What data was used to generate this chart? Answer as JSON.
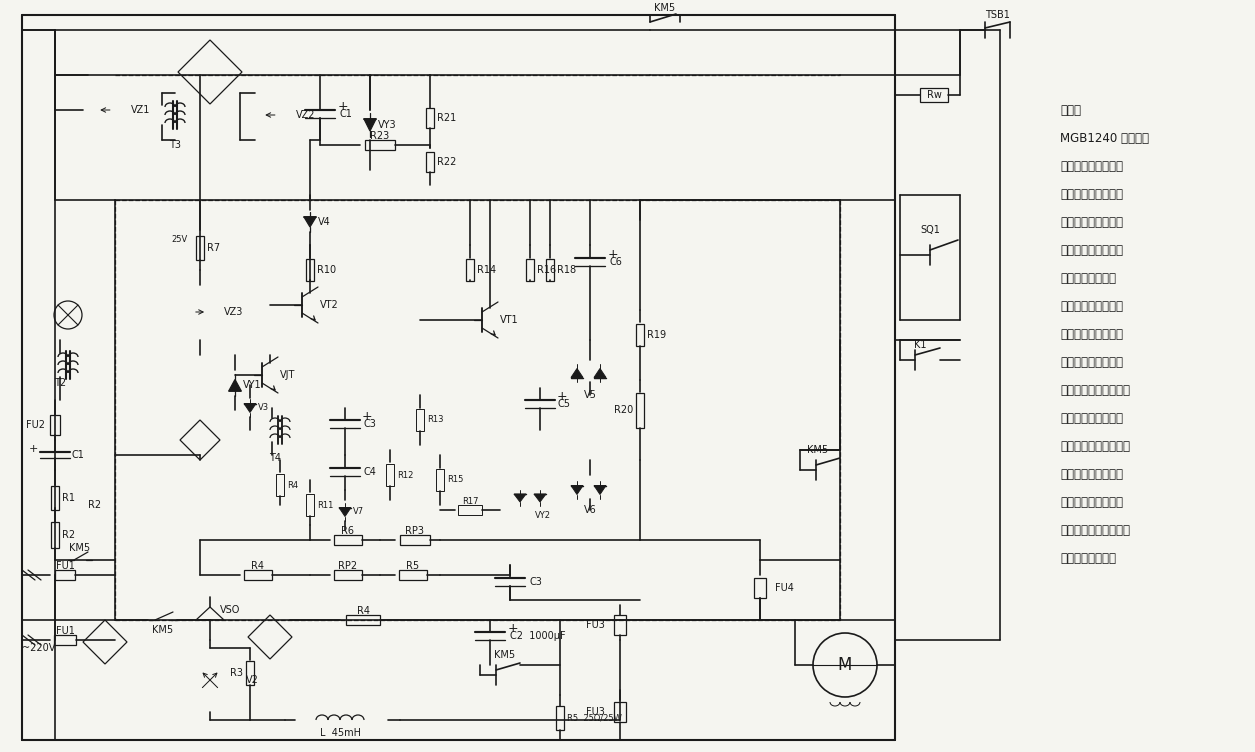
{
  "bg_color": "#f5f5f0",
  "line_color": "#1a1a1a",
  "fig_width": 12.55,
  "fig_height": 7.52,
  "description_lines": [
    "所示是",
    "MGB1240 型磨床晶",
    "闸管无级调速系统原",
    "理图，采用单相全波",
    "整流供电，利用脉冲",
    "移相原理来控制晶闸",
    "管整流器的导通角",
    "度，从而来调节直流",
    "电动机的电枢电压，",
    "以达到无级调速之目",
    "的。系统包括主电路、",
    "励磁电路、给定信号",
    "电路、触发控制电路、",
    "校正环节、励磁保护",
    "电路、电流截止保护",
    "电路、限幅环节、高速",
    "起动保护环节等。"
  ]
}
